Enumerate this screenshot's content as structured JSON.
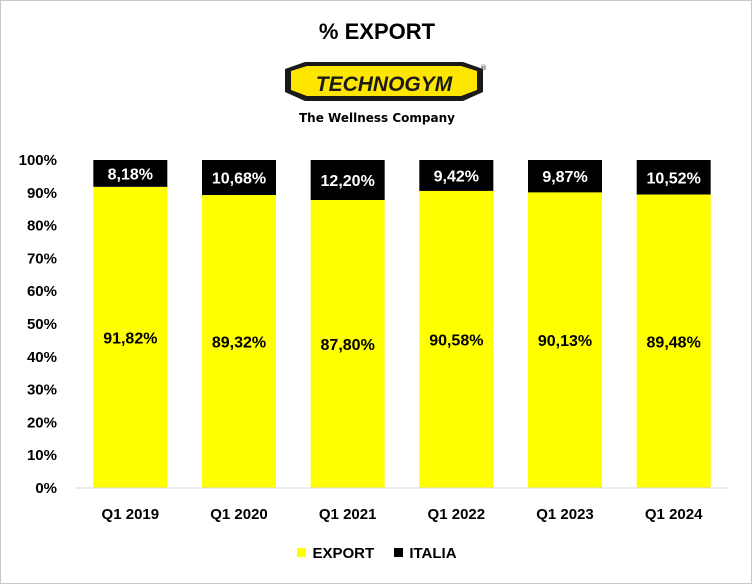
{
  "chart_data": {
    "type": "bar",
    "stacked": true,
    "title": "% EXPORT",
    "brand": {
      "logo_text": "TECHNOGYM",
      "registered_mark": "®",
      "tagline": "The Wellness Company"
    },
    "categories": [
      "Q1 2019",
      "Q1 2020",
      "Q1 2021",
      "Q1 2022",
      "Q1 2023",
      "Q1 2024"
    ],
    "series": [
      {
        "name": "EXPORT",
        "color": "#ffff00",
        "values": [
          91.82,
          89.32,
          87.8,
          90.58,
          90.13,
          89.48
        ],
        "labels": [
          "91,82%",
          "89,32%",
          "87,80%",
          "90,58%",
          "90,13%",
          "89,48%"
        ]
      },
      {
        "name": "ITALIA",
        "color": "#000000",
        "values": [
          8.18,
          10.68,
          12.2,
          9.42,
          9.87,
          10.52
        ],
        "labels": [
          "8,18%",
          "10,68%",
          "12,20%",
          "9,42%",
          "9,87%",
          "10,52%"
        ]
      }
    ],
    "ylim": [
      0,
      100
    ],
    "yticks": [
      "0%",
      "10%",
      "20%",
      "30%",
      "40%",
      "50%",
      "60%",
      "70%",
      "80%",
      "90%",
      "100%"
    ],
    "grid": false,
    "legend_position": "bottom"
  }
}
